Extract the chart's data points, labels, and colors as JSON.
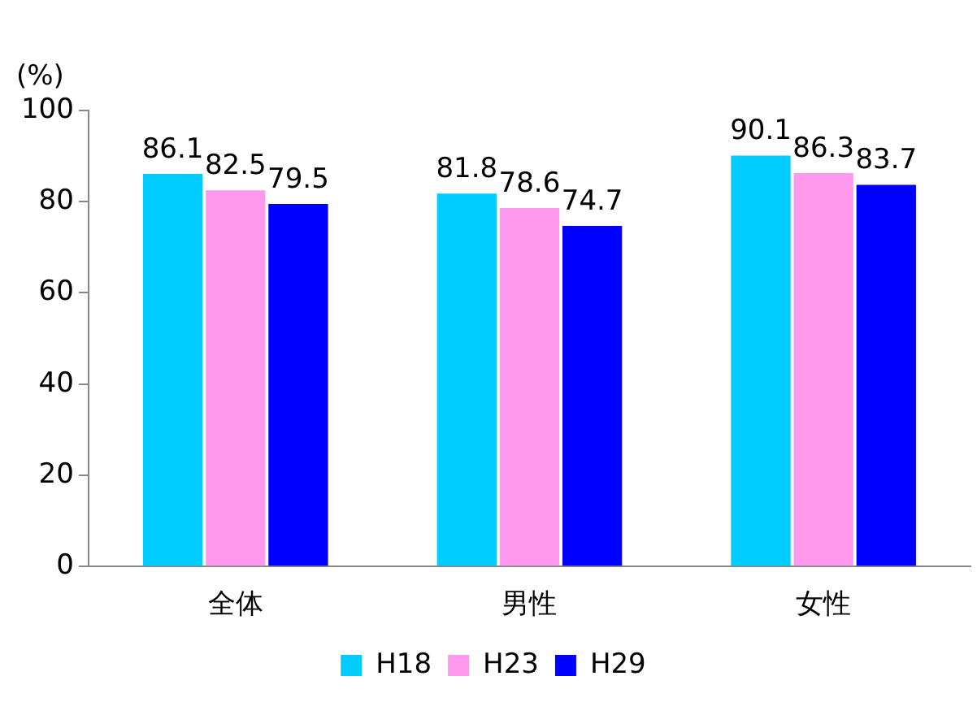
{
  "chart_data": {
    "type": "bar",
    "ylabel": "(%)",
    "categories": [
      "全体",
      "男性",
      "女性"
    ],
    "series": [
      {
        "name": "H18",
        "color": "#00ccff",
        "values": [
          86.1,
          81.8,
          90.1
        ]
      },
      {
        "name": "H23",
        "color": "#ff99ee",
        "values": [
          82.5,
          78.6,
          86.3
        ]
      },
      {
        "name": "H29",
        "color": "#0000ff",
        "values": [
          79.5,
          74.7,
          83.7
        ]
      }
    ],
    "ylim": [
      0,
      100
    ],
    "yticks": [
      0,
      20,
      40,
      60,
      80,
      100
    ],
    "grid": false,
    "legend": "bottom",
    "data_labels": true
  }
}
